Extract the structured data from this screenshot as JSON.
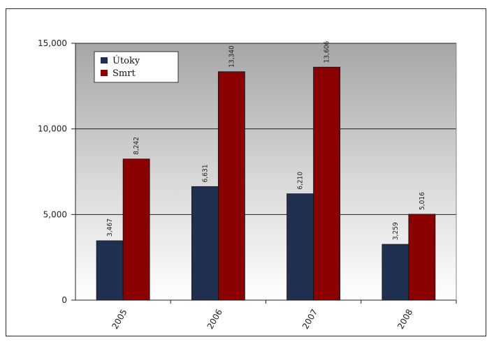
{
  "chart_data": {
    "type": "bar",
    "categories": [
      "2005",
      "2006",
      "2007",
      "2008"
    ],
    "series": [
      {
        "name": "Útoky",
        "color": "#1f3050",
        "values": [
          3467,
          6631,
          6210,
          3259
        ],
        "labels": [
          "3,467",
          "6,631",
          "6,210",
          "3,259"
        ]
      },
      {
        "name": "Smrt",
        "color": "#8b0000",
        "values": [
          8242,
          13340,
          13606,
          5016
        ],
        "labels": [
          "8,242",
          "13,340",
          "13,606",
          "5,016"
        ]
      }
    ],
    "y_ticks": [
      0,
      5000,
      10000,
      15000
    ],
    "y_tick_labels": [
      "0",
      "5,000",
      "10,000",
      "15,000"
    ],
    "ylim": [
      0,
      15000
    ],
    "grid": true,
    "legend_position": "top-left"
  }
}
